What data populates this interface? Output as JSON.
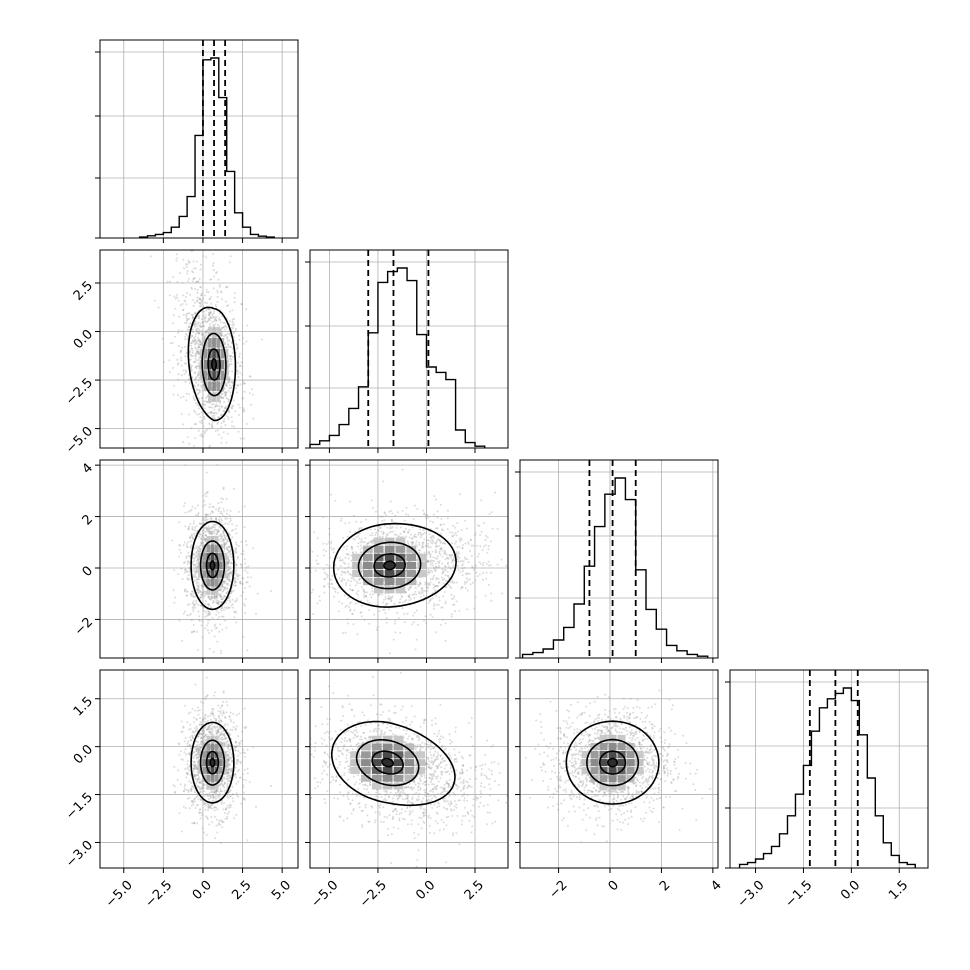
{
  "chart_data": {
    "type": "corner",
    "grid": true,
    "params": [
      {
        "range": [
          -6.5,
          6
        ],
        "ticks": [
          -5.0,
          -2.5,
          0.0,
          2.5,
          5.0
        ],
        "tick_labels": [
          "−5.0",
          "−2.5",
          "0.0",
          "2.5",
          "5.0"
        ],
        "quantiles": [
          0.0,
          0.7,
          1.4
        ],
        "hist": {
          "bin_edges": [
            -4.0,
            -3.5,
            -3.0,
            -2.5,
            -2.0,
            -1.5,
            -1.0,
            -0.5,
            0.0,
            0.5,
            1.0,
            1.5,
            2.0,
            2.5,
            3.0,
            3.5,
            4.0,
            4.5
          ],
          "counts": [
            0.005,
            0.012,
            0.02,
            0.03,
            0.06,
            0.12,
            0.23,
            0.57,
            0.99,
            1.0,
            0.78,
            0.37,
            0.14,
            0.06,
            0.02,
            0.01,
            0.005
          ]
        }
      },
      {
        "range": [
          -6.0,
          4.2
        ],
        "ticks": [
          -5.0,
          -2.5,
          0.0,
          2.5
        ],
        "tick_labels": [
          "−5.0",
          "−2.5",
          "0.0",
          "2.5"
        ],
        "quantiles": [
          -3.0,
          -1.7,
          0.1
        ],
        "hist": {
          "bin_edges": [
            -6.0,
            -5.5,
            -5.0,
            -4.5,
            -4.0,
            -3.5,
            -3.0,
            -2.5,
            -2.0,
            -1.5,
            -1.0,
            -0.5,
            0.0,
            0.5,
            1.0,
            1.5,
            2.0,
            2.5,
            3.0
          ],
          "counts": [
            0.02,
            0.04,
            0.07,
            0.13,
            0.22,
            0.34,
            0.64,
            0.92,
            0.98,
            1.0,
            0.93,
            0.63,
            0.45,
            0.42,
            0.38,
            0.1,
            0.03,
            0.01
          ]
        }
      },
      {
        "range": [
          -3.5,
          4.2
        ],
        "ticks": [
          -2,
          0,
          2,
          4
        ],
        "tick_labels": [
          "−2",
          "0",
          "2",
          "4"
        ],
        "quantiles": [
          -0.8,
          0.1,
          1.0
        ],
        "hist": {
          "bin_edges": [
            -3.4,
            -3.0,
            -2.6,
            -2.2,
            -1.8,
            -1.4,
            -1.0,
            -0.6,
            -0.2,
            0.2,
            0.6,
            1.0,
            1.4,
            1.8,
            2.2,
            2.6,
            3.0,
            3.4,
            3.8
          ],
          "counts": [
            0.02,
            0.03,
            0.05,
            0.1,
            0.17,
            0.3,
            0.51,
            0.73,
            0.91,
            1.0,
            0.88,
            0.49,
            0.27,
            0.16,
            0.07,
            0.04,
            0.02,
            0.01
          ]
        }
      },
      {
        "range": [
          -3.8,
          2.4
        ],
        "ticks": [
          -3.0,
          -1.5,
          0.0,
          1.5
        ],
        "tick_labels": [
          "−3.0",
          "−1.5",
          "0.0",
          "1.5"
        ],
        "quantiles": [
          -1.3,
          -0.5,
          0.2
        ],
        "hist": {
          "bin_edges": [
            -3.5,
            -3.25,
            -3.0,
            -2.75,
            -2.5,
            -2.25,
            -2.0,
            -1.75,
            -1.5,
            -1.25,
            -1.0,
            -0.75,
            -0.5,
            -0.25,
            0.0,
            0.25,
            0.5,
            0.75,
            1.0,
            1.25,
            1.5,
            1.75,
            2.0
          ],
          "counts": [
            0.02,
            0.03,
            0.05,
            0.08,
            0.12,
            0.19,
            0.29,
            0.41,
            0.57,
            0.76,
            0.89,
            0.94,
            0.97,
            1.0,
            0.93,
            0.74,
            0.5,
            0.29,
            0.14,
            0.07,
            0.03,
            0.02
          ]
        }
      }
    ],
    "pairs": [
      {
        "x": 0,
        "y": 1,
        "cx": 0.7,
        "cy": -1.7,
        "sx": 0.75,
        "sy": 1.6,
        "rho": -0.15,
        "wing": {
          "dx": -1.3,
          "dy": 2.4,
          "w": 0.25
        }
      },
      {
        "x": 0,
        "y": 2,
        "cx": 0.6,
        "cy": 0.1,
        "sx": 0.75,
        "sy": 0.95,
        "rho": 0.0
      },
      {
        "x": 1,
        "y": 2,
        "cx": -1.9,
        "cy": 0.1,
        "sx": 1.6,
        "sy": 0.9,
        "rho": 0.05,
        "wing": {
          "dx": 2.6,
          "dy": 0.25,
          "w": 0.3
        }
      },
      {
        "x": 0,
        "y": 3,
        "cx": 0.6,
        "cy": -0.5,
        "sx": 0.75,
        "sy": 0.7,
        "rho": 0.0
      },
      {
        "x": 1,
        "y": 3,
        "cx": -2.0,
        "cy": -0.5,
        "sx": 1.6,
        "sy": 0.7,
        "rho": -0.15,
        "wing": {
          "dx": 2.8,
          "dy": -0.9,
          "w": 0.3
        }
      },
      {
        "x": 2,
        "y": 3,
        "cx": 0.1,
        "cy": -0.5,
        "sx": 1.0,
        "sy": 0.72,
        "rho": 0.0
      }
    ]
  }
}
